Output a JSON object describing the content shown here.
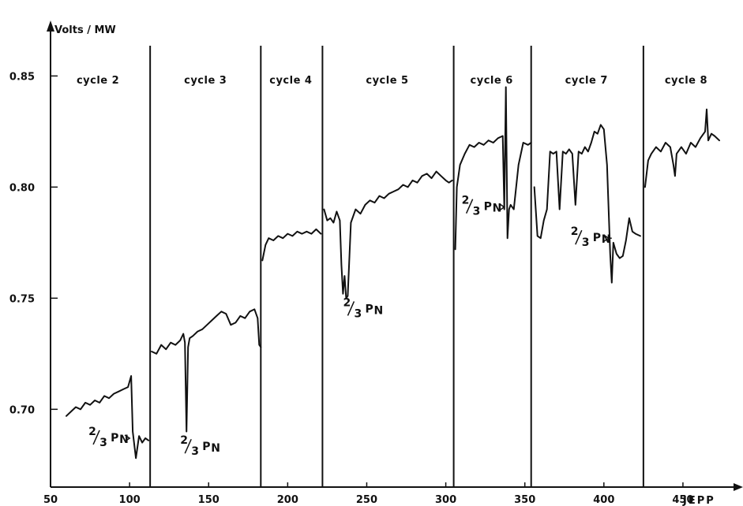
{
  "chart_data": {
    "type": "line",
    "ylabel": "Volts / MW",
    "xlabel": "JEPP",
    "xlim": [
      50,
      480
    ],
    "ylim": [
      0.665,
      0.87
    ],
    "x_ticks": [
      "50",
      "100",
      "150",
      "200",
      "250",
      "300",
      "350",
      "400",
      "450"
    ],
    "y_ticks": [
      "0.70",
      "0.75",
      "0.80",
      "0.85"
    ],
    "cycle_boundaries": [
      113,
      183,
      222,
      305,
      354,
      425
    ],
    "cycles": [
      {
        "label": "cycle  2",
        "x": 80
      },
      {
        "label": "cycle  3",
        "x": 148
      },
      {
        "label": "cycle  4",
        "x": 202
      },
      {
        "label": "cycle    5",
        "x": 263
      },
      {
        "label": "cycle  6",
        "x": 329
      },
      {
        "label": "cycle    7",
        "x": 389
      },
      {
        "label": "cycle  8",
        "x": 452
      }
    ],
    "series": [
      {
        "x": [
          60,
          63,
          66,
          69,
          72,
          75,
          78,
          81,
          84,
          87,
          90,
          93,
          96,
          99,
          101,
          102,
          104,
          106,
          108,
          110,
          112
        ],
        "y": [
          0.697,
          0.699,
          0.701,
          0.7,
          0.703,
          0.702,
          0.704,
          0.703,
          0.706,
          0.705,
          0.707,
          0.708,
          0.709,
          0.71,
          0.715,
          0.69,
          0.678,
          0.688,
          0.685,
          0.687,
          0.686
        ]
      },
      {
        "x": [
          114,
          117,
          120,
          123,
          126,
          129,
          132,
          134,
          135,
          136,
          137,
          138,
          140,
          143,
          146,
          149,
          152,
          155,
          158,
          161,
          164,
          167,
          170,
          173,
          176,
          179,
          181,
          182,
          183
        ],
        "y": [
          0.726,
          0.725,
          0.729,
          0.727,
          0.73,
          0.729,
          0.731,
          0.734,
          0.73,
          0.69,
          0.728,
          0.732,
          0.733,
          0.735,
          0.736,
          0.738,
          0.74,
          0.742,
          0.744,
          0.743,
          0.738,
          0.739,
          0.742,
          0.741,
          0.744,
          0.745,
          0.741,
          0.729,
          0.728
        ]
      },
      {
        "x": [
          184,
          186,
          188,
          191,
          194,
          197,
          200,
          203,
          206,
          209,
          212,
          215,
          218,
          221
        ],
        "y": [
          0.767,
          0.774,
          0.777,
          0.776,
          0.778,
          0.777,
          0.779,
          0.778,
          0.78,
          0.779,
          0.78,
          0.779,
          0.781,
          0.779
        ]
      },
      {
        "x": [
          223,
          225,
          227,
          229,
          231,
          233,
          234,
          235,
          236,
          237,
          238,
          240,
          243,
          246,
          249,
          252,
          255,
          258,
          261,
          264,
          267,
          270,
          273,
          276,
          279,
          282,
          285,
          288,
          291,
          294,
          297,
          300,
          302,
          304
        ],
        "y": [
          0.79,
          0.785,
          0.786,
          0.784,
          0.789,
          0.785,
          0.765,
          0.752,
          0.76,
          0.75,
          0.751,
          0.784,
          0.79,
          0.788,
          0.792,
          0.794,
          0.793,
          0.796,
          0.795,
          0.797,
          0.798,
          0.799,
          0.801,
          0.8,
          0.803,
          0.802,
          0.805,
          0.806,
          0.804,
          0.807,
          0.805,
          0.803,
          0.802,
          0.803
        ]
      },
      {
        "x": [
          306,
          307,
          309,
          312,
          315,
          318,
          321,
          324,
          327,
          330,
          333,
          336,
          337,
          338,
          339,
          340,
          341,
          343,
          346,
          349,
          352,
          354
        ],
        "y": [
          0.772,
          0.8,
          0.81,
          0.815,
          0.819,
          0.818,
          0.82,
          0.819,
          0.821,
          0.82,
          0.822,
          0.823,
          0.79,
          0.845,
          0.777,
          0.79,
          0.792,
          0.79,
          0.81,
          0.82,
          0.819,
          0.82
        ]
      },
      {
        "x": [
          356,
          358,
          360,
          362,
          364,
          366,
          368,
          370,
          372,
          374,
          376,
          378,
          380,
          382,
          384,
          386,
          388,
          390,
          392,
          394,
          396,
          398,
          400,
          402,
          404,
          405,
          406,
          408,
          410,
          412,
          414,
          416,
          418,
          420,
          423
        ],
        "y": [
          0.8,
          0.778,
          0.777,
          0.785,
          0.79,
          0.816,
          0.815,
          0.816,
          0.79,
          0.816,
          0.815,
          0.817,
          0.815,
          0.792,
          0.816,
          0.815,
          0.818,
          0.816,
          0.82,
          0.825,
          0.824,
          0.828,
          0.826,
          0.81,
          0.77,
          0.757,
          0.775,
          0.77,
          0.768,
          0.769,
          0.776,
          0.786,
          0.78,
          0.779,
          0.778
        ]
      },
      {
        "x": [
          426,
          428,
          430,
          433,
          436,
          439,
          442,
          444,
          445,
          446,
          449,
          452,
          455,
          458,
          461,
          464,
          465,
          466,
          468,
          470,
          473
        ],
        "y": [
          0.8,
          0.812,
          0.815,
          0.818,
          0.816,
          0.82,
          0.818,
          0.81,
          0.805,
          0.815,
          0.818,
          0.815,
          0.82,
          0.818,
          0.822,
          0.825,
          0.835,
          0.821,
          0.824,
          0.823,
          0.821
        ]
      }
    ],
    "annotations": [
      {
        "text_main": "2",
        "text_den": "3",
        "text_p": "P",
        "text_n": "N",
        "x": 82,
        "y": 0.687,
        "arrow_to_x": 101
      },
      {
        "text_main": "2",
        "text_den": "3",
        "text_p": "P",
        "text_n": "N",
        "x": 140,
        "y": 0.683
      },
      {
        "text_main": "2",
        "text_den": "3",
        "text_p": "P",
        "text_n": "N",
        "x": 243,
        "y": 0.745
      },
      {
        "text_main": "2",
        "text_den": "3",
        "text_p": "P",
        "text_n": "N",
        "x": 318,
        "y": 0.791,
        "arrow_to_x": 338
      },
      {
        "text_main": "2",
        "text_den": "3",
        "text_p": "P",
        "text_n": "N",
        "x": 387,
        "y": 0.777,
        "arrow_to_x": 404
      }
    ]
  }
}
